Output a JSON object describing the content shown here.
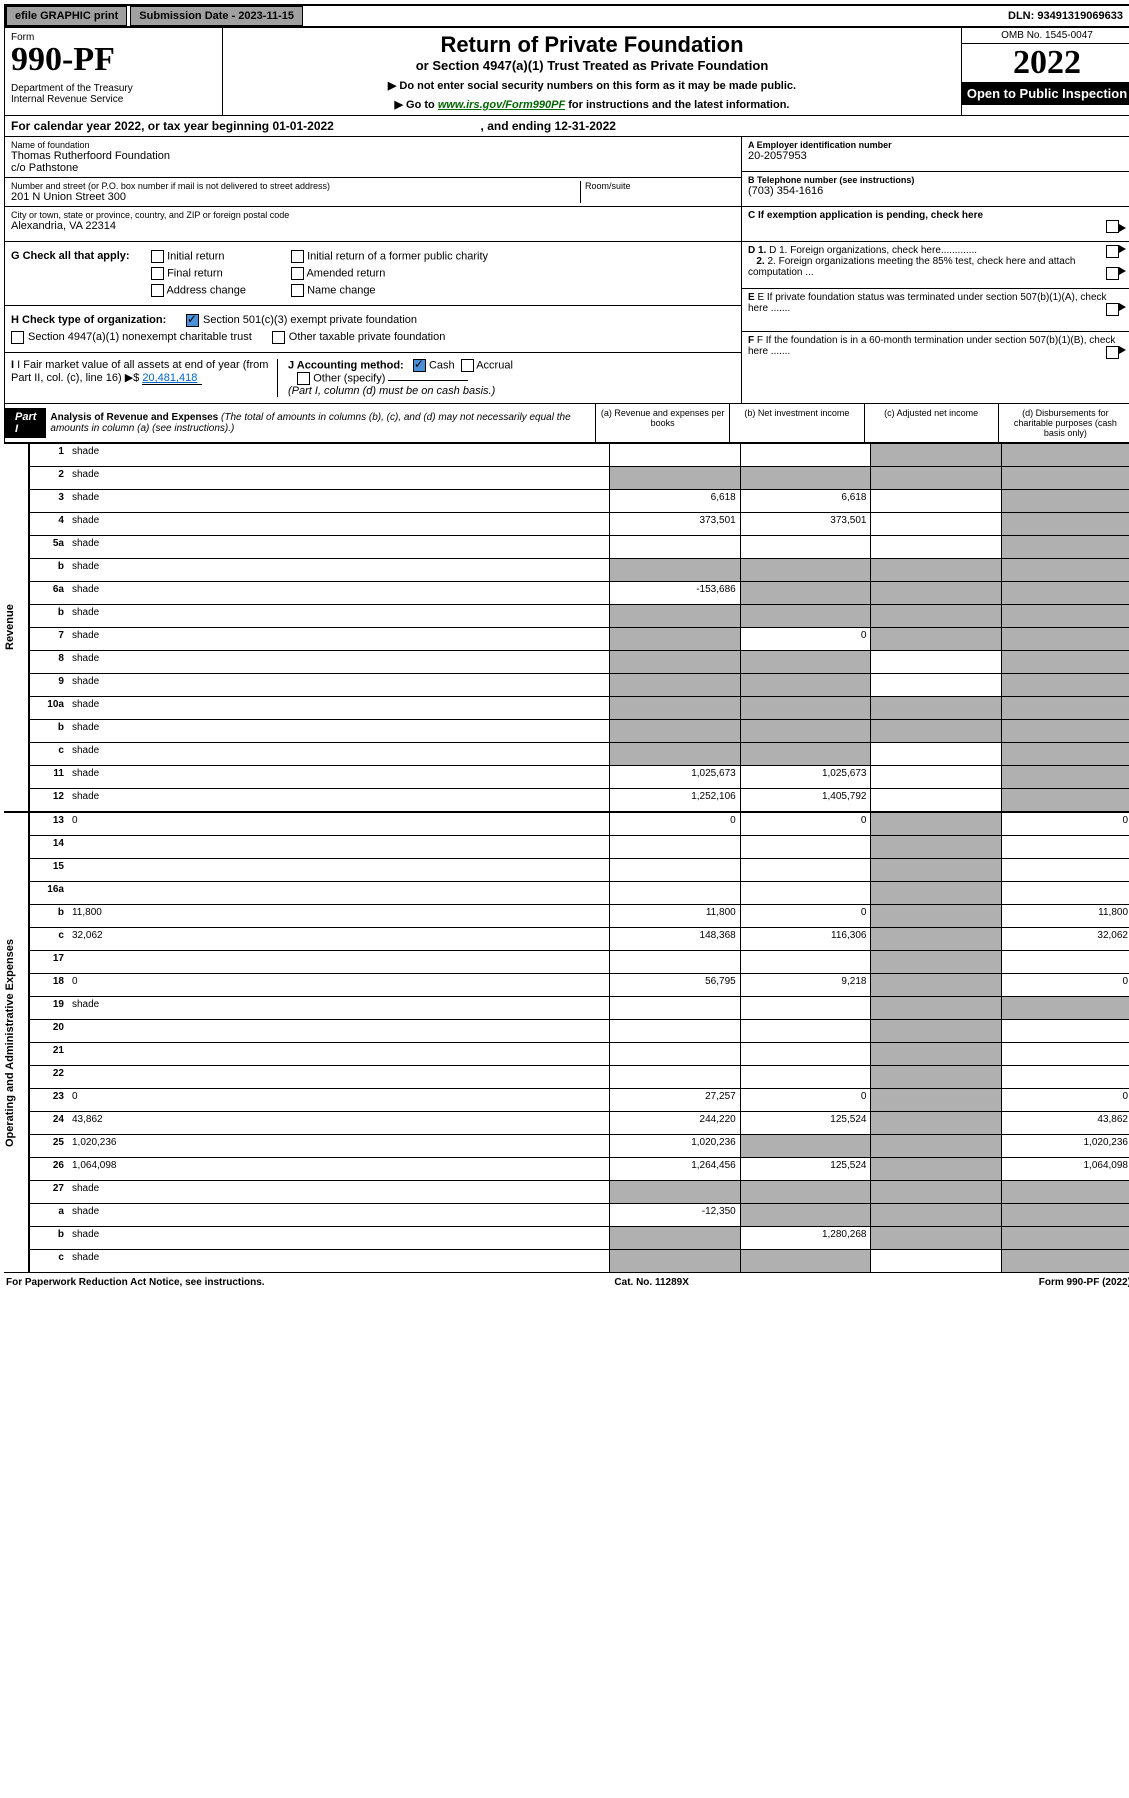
{
  "topbar": {
    "efile": "efile GRAPHIC print",
    "submission_label": "Submission Date - 2023-11-15",
    "dln": "DLN: 93491319069633"
  },
  "header": {
    "form_text": "Form",
    "form_number": "990-PF",
    "dept": "Department of the Treasury\nInternal Revenue Service",
    "title": "Return of Private Foundation",
    "subtitle": "or Section 4947(a)(1) Trust Treated as Private Foundation",
    "note1": "▶ Do not enter social security numbers on this form as it may be made public.",
    "note2_pre": "▶ Go to ",
    "note2_link": "www.irs.gov/Form990PF",
    "note2_post": " for instructions and the latest information.",
    "omb": "OMB No. 1545-0047",
    "year": "2022",
    "inspection": "Open to Public Inspection"
  },
  "calendar": {
    "text_pre": "For calendar year 2022, or tax year beginning ",
    "begin": "01-01-2022",
    "text_mid": " , and ending ",
    "end": "12-31-2022"
  },
  "foundation": {
    "name_lbl": "Name of foundation",
    "name": "Thomas Rutherfoord Foundation\nc/o Pathstone",
    "addr_lbl": "Number and street (or P.O. box number if mail is not delivered to street address)",
    "addr": "201 N Union Street 300",
    "room_lbl": "Room/suite",
    "city_lbl": "City or town, state or province, country, and ZIP or foreign postal code",
    "city": "Alexandria, VA  22314",
    "ein_lbl": "A Employer identification number",
    "ein": "20-2057953",
    "phone_lbl": "B Telephone number (see instructions)",
    "phone": "(703) 354-1616",
    "c_lbl": "C If exemption application is pending, check here",
    "d1_lbl": "D 1. Foreign organizations, check here.............",
    "d2_lbl": "2. Foreign organizations meeting the 85% test, check here and attach computation ...",
    "e_lbl": "E If private foundation status was terminated under section 507(b)(1)(A), check here .......",
    "f_lbl": "F If the foundation is in a 60-month termination under section 507(b)(1)(B), check here ......."
  },
  "checks": {
    "g_lbl": "G Check all that apply:",
    "initial": "Initial return",
    "final": "Final return",
    "addr_change": "Address change",
    "initial_former": "Initial return of a former public charity",
    "amended": "Amended return",
    "name_change": "Name change",
    "h_lbl": "H Check type of organization:",
    "h1": "Section 501(c)(3) exempt private foundation",
    "h2": "Section 4947(a)(1) nonexempt charitable trust",
    "h3": "Other taxable private foundation",
    "i_lbl": "I Fair market value of all assets at end of year (from Part II, col. (c), line 16) ▶$ ",
    "i_val": "20,481,418",
    "j_lbl": "J Accounting method:",
    "j_cash": "Cash",
    "j_accrual": "Accrual",
    "j_other": "Other (specify)",
    "j_note": "(Part I, column (d) must be on cash basis.)"
  },
  "part1": {
    "label": "Part I",
    "title": "Analysis of Revenue and Expenses",
    "title_note": "(The total of amounts in columns (b), (c), and (d) may not necessarily equal the amounts in column (a) (see instructions).)",
    "col_a": "(a) Revenue and expenses per books",
    "col_b": "(b) Net investment income",
    "col_c": "(c) Adjusted net income",
    "col_d": "(d) Disbursements for charitable purposes (cash basis only)"
  },
  "side": {
    "revenue": "Revenue",
    "expenses": "Operating and Administrative Expenses"
  },
  "rows": [
    {
      "n": "1",
      "d": "shade",
      "a": "",
      "b": "",
      "c": "shade"
    },
    {
      "n": "2",
      "d": "shade",
      "a": "shade",
      "b": "shade",
      "c": "shade"
    },
    {
      "n": "3",
      "d": "shade",
      "a": "6,618",
      "b": "6,618",
      "c": ""
    },
    {
      "n": "4",
      "d": "shade",
      "a": "373,501",
      "b": "373,501",
      "c": ""
    },
    {
      "n": "5a",
      "d": "shade",
      "a": "",
      "b": "",
      "c": ""
    },
    {
      "n": "b",
      "d": "shade",
      "a": "shade",
      "b": "shade",
      "c": "shade"
    },
    {
      "n": "6a",
      "d": "shade",
      "a": "-153,686",
      "b": "shade",
      "c": "shade"
    },
    {
      "n": "b",
      "d": "shade",
      "a": "shade",
      "b": "shade",
      "c": "shade"
    },
    {
      "n": "7",
      "d": "shade",
      "a": "shade",
      "b": "0",
      "c": "shade"
    },
    {
      "n": "8",
      "d": "shade",
      "a": "shade",
      "b": "shade",
      "c": ""
    },
    {
      "n": "9",
      "d": "shade",
      "a": "shade",
      "b": "shade",
      "c": ""
    },
    {
      "n": "10a",
      "d": "shade",
      "a": "shade",
      "b": "shade",
      "c": "shade"
    },
    {
      "n": "b",
      "d": "shade",
      "a": "shade",
      "b": "shade",
      "c": "shade"
    },
    {
      "n": "c",
      "d": "shade",
      "a": "shade",
      "b": "shade",
      "c": ""
    },
    {
      "n": "11",
      "d": "shade",
      "a": "1,025,673",
      "b": "1,025,673",
      "c": ""
    },
    {
      "n": "12",
      "d": "shade",
      "a": "1,252,106",
      "b": "1,405,792",
      "c": ""
    }
  ],
  "exp_rows": [
    {
      "n": "13",
      "d": "0",
      "a": "0",
      "b": "0",
      "c": "shade"
    },
    {
      "n": "14",
      "d": "",
      "a": "",
      "b": "",
      "c": "shade"
    },
    {
      "n": "15",
      "d": "",
      "a": "",
      "b": "",
      "c": "shade"
    },
    {
      "n": "16a",
      "d": "",
      "a": "",
      "b": "",
      "c": "shade"
    },
    {
      "n": "b",
      "d": "11,800",
      "a": "11,800",
      "b": "0",
      "c": "shade"
    },
    {
      "n": "c",
      "d": "32,062",
      "a": "148,368",
      "b": "116,306",
      "c": "shade"
    },
    {
      "n": "17",
      "d": "",
      "a": "",
      "b": "",
      "c": "shade"
    },
    {
      "n": "18",
      "d": "0",
      "a": "56,795",
      "b": "9,218",
      "c": "shade"
    },
    {
      "n": "19",
      "d": "shade",
      "a": "",
      "b": "",
      "c": "shade"
    },
    {
      "n": "20",
      "d": "",
      "a": "",
      "b": "",
      "c": "shade"
    },
    {
      "n": "21",
      "d": "",
      "a": "",
      "b": "",
      "c": "shade"
    },
    {
      "n": "22",
      "d": "",
      "a": "",
      "b": "",
      "c": "shade"
    },
    {
      "n": "23",
      "d": "0",
      "a": "27,257",
      "b": "0",
      "c": "shade"
    },
    {
      "n": "24",
      "d": "43,862",
      "a": "244,220",
      "b": "125,524",
      "c": "shade"
    },
    {
      "n": "25",
      "d": "1,020,236",
      "a": "1,020,236",
      "b": "shade",
      "c": "shade"
    },
    {
      "n": "26",
      "d": "1,064,098",
      "a": "1,264,456",
      "b": "125,524",
      "c": "shade"
    },
    {
      "n": "27",
      "d": "shade",
      "a": "shade",
      "b": "shade",
      "c": "shade"
    },
    {
      "n": "a",
      "d": "shade",
      "a": "-12,350",
      "b": "shade",
      "c": "shade"
    },
    {
      "n": "b",
      "d": "shade",
      "a": "shade",
      "b": "1,280,268",
      "c": "shade"
    },
    {
      "n": "c",
      "d": "shade",
      "a": "shade",
      "b": "shade",
      "c": ""
    }
  ],
  "footer": {
    "l": "For Paperwork Reduction Act Notice, see instructions.",
    "c": "Cat. No. 11289X",
    "r": "Form 990-PF (2022)"
  }
}
